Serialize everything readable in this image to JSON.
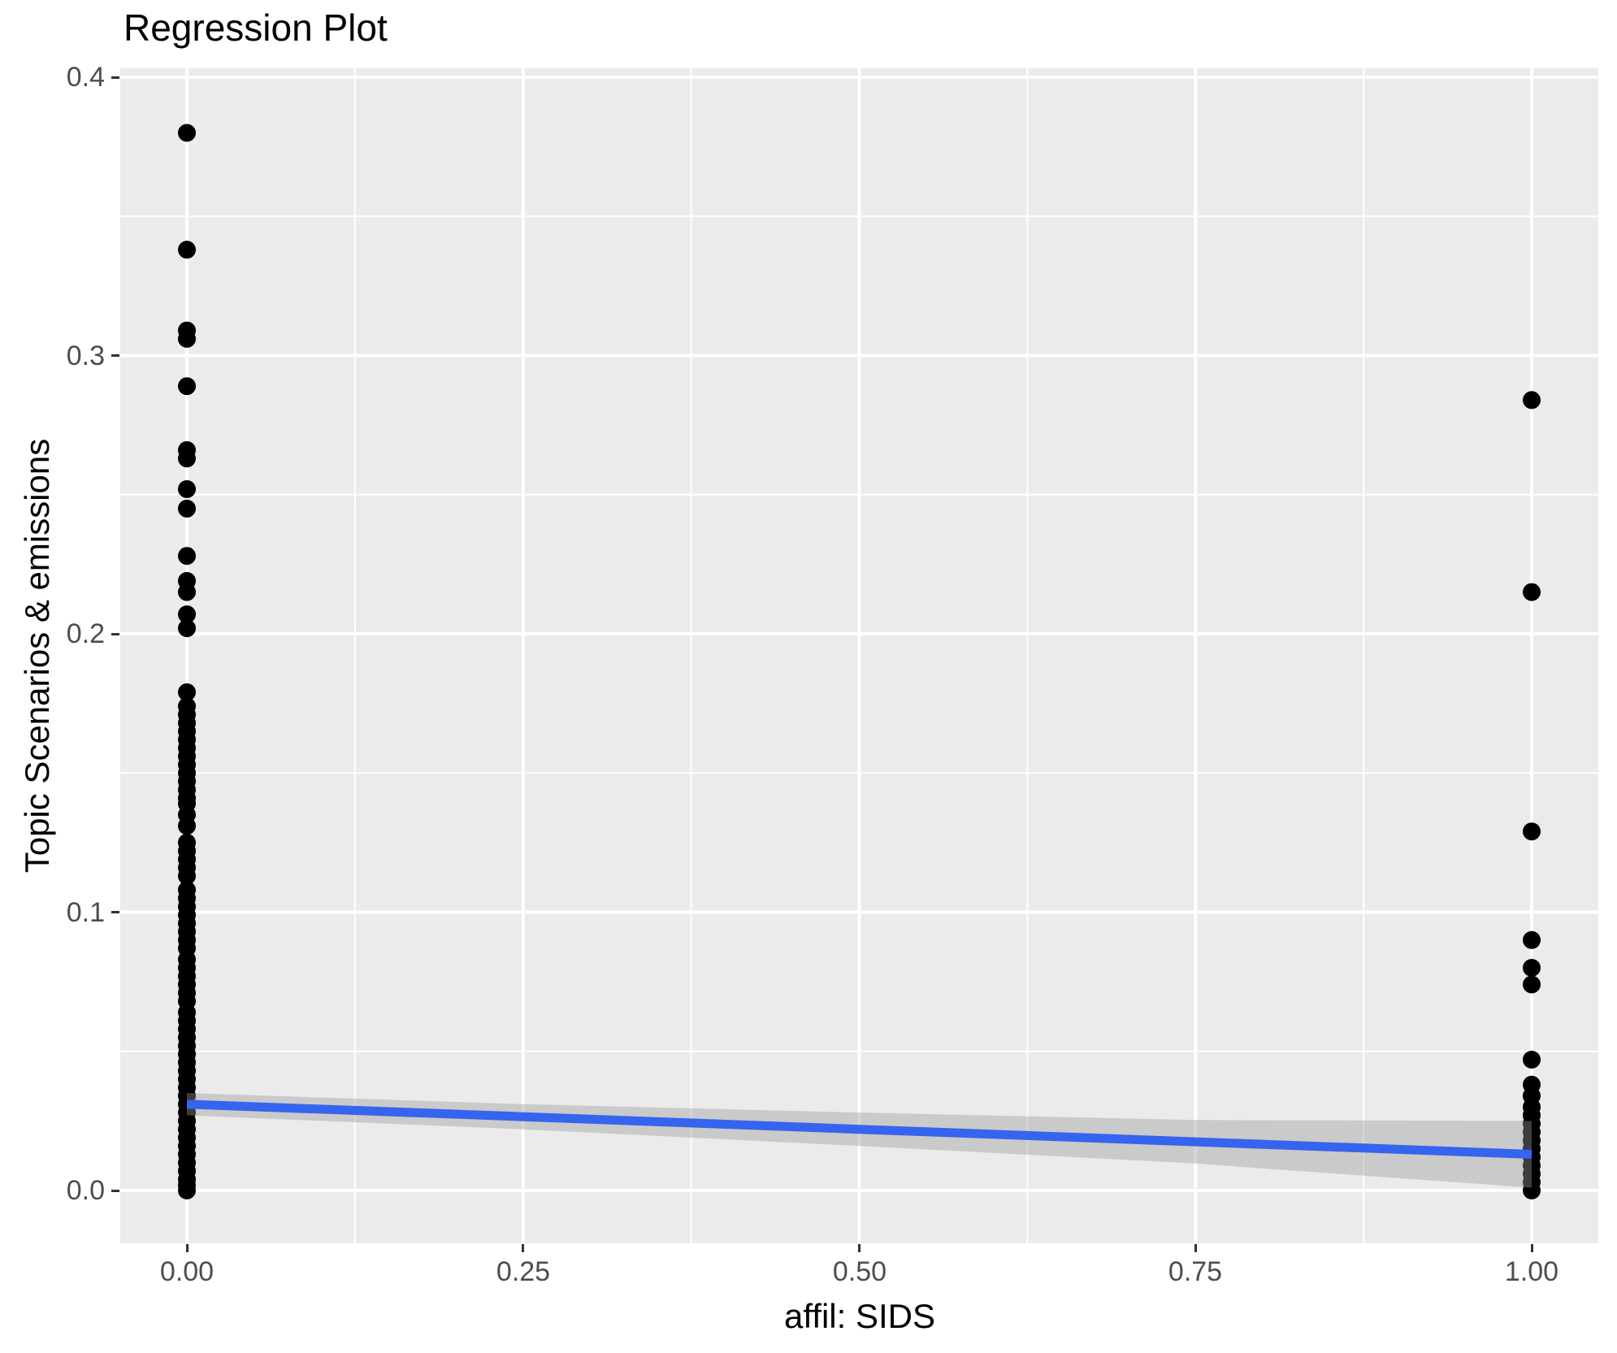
{
  "chart": {
    "title": "Regression Plot",
    "x_axis_title": "affil: SIDS",
    "y_axis_title": "Topic Scenarios & emissions"
  },
  "chart_data": {
    "type": "scatter",
    "title": "Regression Plot",
    "xlabel": "affil: SIDS",
    "ylabel": "Topic Scenarios & emissions",
    "xlim": [
      -0.05,
      1.05
    ],
    "ylim": [
      -0.019,
      0.403
    ],
    "grid": "white major+minor gridlines on grey panel",
    "legend_position": "none",
    "x_ticks": [
      {
        "v": 0.0,
        "label": "0.00"
      },
      {
        "v": 0.25,
        "label": "0.25"
      },
      {
        "v": 0.5,
        "label": "0.50"
      },
      {
        "v": 0.75,
        "label": "0.75"
      },
      {
        "v": 1.0,
        "label": "1.00"
      }
    ],
    "y_ticks": [
      {
        "v": 0.0,
        "label": "0.0"
      },
      {
        "v": 0.1,
        "label": "0.1"
      },
      {
        "v": 0.2,
        "label": "0.2"
      },
      {
        "v": 0.3,
        "label": "0.3"
      },
      {
        "v": 0.4,
        "label": "0.4"
      }
    ],
    "x_minor": [
      0.125,
      0.375,
      0.625,
      0.875
    ],
    "y_minor": [
      0.05,
      0.15,
      0.25,
      0.35
    ],
    "series": [
      {
        "name": "observations at affil=0",
        "x": 0,
        "values": [
          0.38,
          0.338,
          0.309,
          0.306,
          0.289,
          0.266,
          0.263,
          0.252,
          0.245,
          0.228,
          0.219,
          0.215,
          0.207,
          0.202,
          0.179,
          0.174,
          0.171,
          0.168,
          0.165,
          0.162,
          0.159,
          0.156,
          0.153,
          0.15,
          0.147,
          0.144,
          0.141,
          0.139,
          0.135,
          0.131,
          0.125,
          0.122,
          0.119,
          0.116,
          0.113,
          0.108,
          0.105,
          0.102,
          0.099,
          0.096,
          0.093,
          0.09,
          0.087,
          0.083,
          0.08,
          0.077,
          0.074,
          0.071,
          0.068,
          0.064,
          0.061,
          0.058,
          0.055,
          0.052,
          0.049,
          0.046,
          0.043,
          0.04,
          0.037,
          0.034,
          0.031,
          0.028,
          0.025,
          0.022,
          0.019,
          0.016,
          0.013,
          0.01,
          0.007,
          0.004,
          0.002,
          0.0
        ]
      },
      {
        "name": "observations at affil=1",
        "x": 1,
        "values": [
          0.284,
          0.215,
          0.129,
          0.09,
          0.08,
          0.074,
          0.047,
          0.038,
          0.034,
          0.03,
          0.027,
          0.024,
          0.021,
          0.018,
          0.015,
          0.012,
          0.009,
          0.006,
          0.003,
          0.0
        ]
      }
    ],
    "regression": {
      "name": "linear fit with 95% CI",
      "x": [
        0.0,
        0.25,
        0.5,
        0.75,
        1.0
      ],
      "fit": [
        0.031,
        0.0265,
        0.022,
        0.0175,
        0.013
      ],
      "ci_upper": [
        0.035,
        0.031,
        0.028,
        0.0253,
        0.025
      ],
      "ci_lower": [
        0.027,
        0.022,
        0.016,
        0.0097,
        0.001
      ]
    },
    "colors": {
      "point": "#000000",
      "line": "#3564EE",
      "band": "rgba(153,153,153,0.4)",
      "panel": "#EBEBEB",
      "gridline": "#FFFFFF",
      "axis_text": "#4D4D4D",
      "tick_mark": "#333333",
      "title_text": "#000000"
    }
  }
}
